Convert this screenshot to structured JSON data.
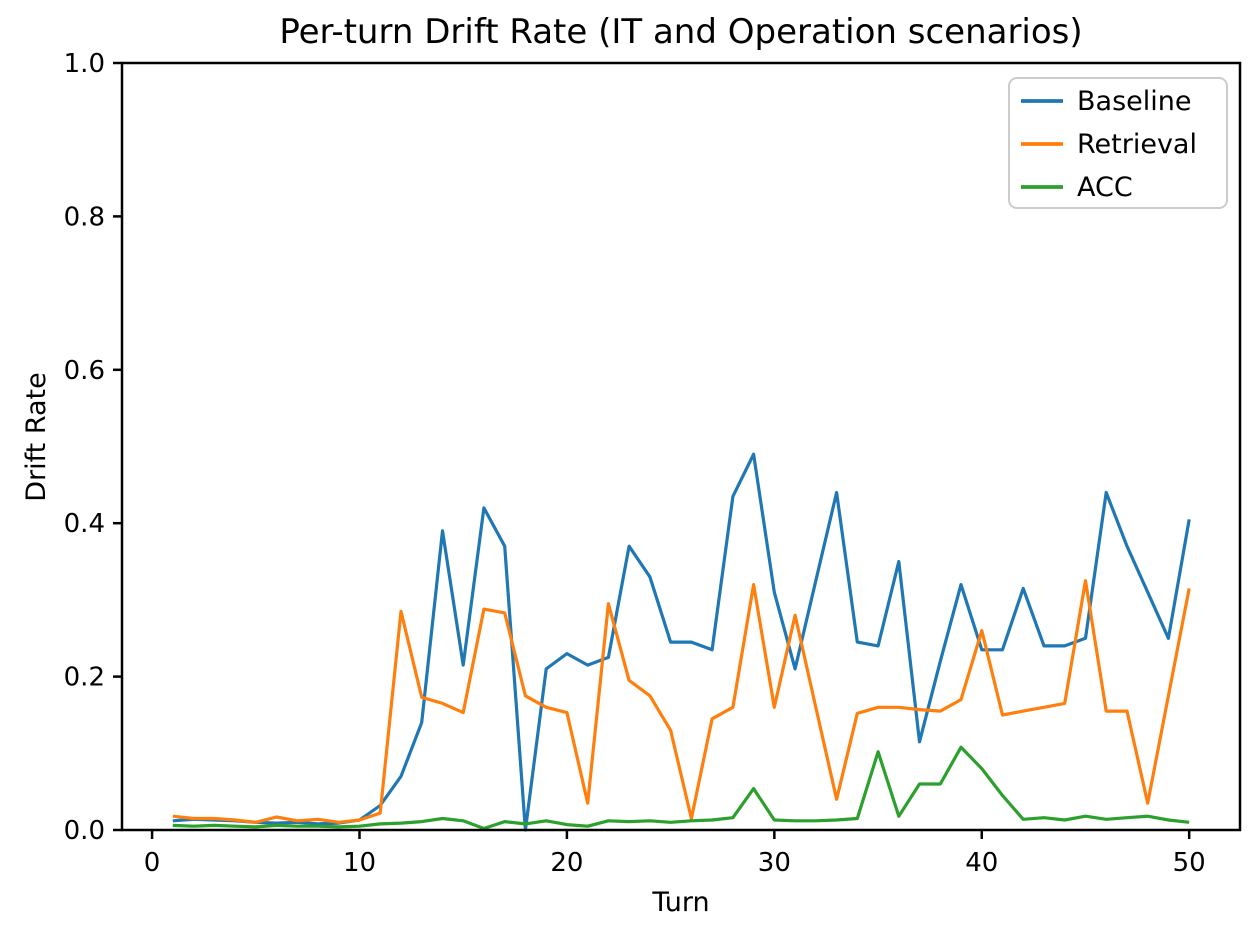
{
  "chart_data": {
    "type": "line",
    "title": "Per-turn Drift Rate (IT and Operation scenarios)",
    "xlabel": "Turn",
    "ylabel": "Drift Rate",
    "xlim": [
      -1.45,
      52.45
    ],
    "ylim": [
      0.0,
      1.0
    ],
    "x_ticks": [
      0,
      10,
      20,
      30,
      40,
      50
    ],
    "y_ticks": [
      "0.0",
      "0.2",
      "0.4",
      "0.6",
      "0.8",
      "1.0"
    ],
    "grid": false,
    "legend_position": "upper right",
    "x": [
      1,
      2,
      3,
      4,
      5,
      6,
      7,
      8,
      9,
      10,
      11,
      12,
      13,
      14,
      15,
      16,
      17,
      18,
      19,
      20,
      21,
      22,
      23,
      24,
      25,
      26,
      27,
      28,
      29,
      30,
      31,
      32,
      33,
      34,
      35,
      36,
      37,
      38,
      39,
      40,
      41,
      42,
      43,
      44,
      45,
      46,
      47,
      48,
      49,
      50
    ],
    "series": [
      {
        "name": "Baseline",
        "color": "#1f77b4",
        "values": [
          0.012,
          0.014,
          0.013,
          0.012,
          0.01,
          0.009,
          0.01,
          0.008,
          0.009,
          0.013,
          0.032,
          0.07,
          0.14,
          0.39,
          0.215,
          0.42,
          0.37,
          0.0,
          0.21,
          0.23,
          0.215,
          0.225,
          0.37,
          0.33,
          0.245,
          0.245,
          0.235,
          0.435,
          0.49,
          0.31,
          0.21,
          0.325,
          0.44,
          0.245,
          0.24,
          0.35,
          0.115,
          0.22,
          0.32,
          0.235,
          0.235,
          0.315,
          0.24,
          0.24,
          0.25,
          0.44,
          0.37,
          0.31,
          0.25,
          0.405
        ]
      },
      {
        "name": "Retrieval",
        "color": "#ff7f0e",
        "values": [
          0.018,
          0.015,
          0.015,
          0.013,
          0.01,
          0.017,
          0.012,
          0.014,
          0.01,
          0.013,
          0.022,
          0.285,
          0.173,
          0.165,
          0.153,
          0.288,
          0.283,
          0.175,
          0.16,
          0.153,
          0.035,
          0.295,
          0.195,
          0.175,
          0.13,
          0.015,
          0.145,
          0.16,
          0.32,
          0.16,
          0.28,
          0.16,
          0.04,
          0.152,
          0.16,
          0.16,
          0.157,
          0.155,
          0.17,
          0.26,
          0.15,
          0.155,
          0.16,
          0.165,
          0.325,
          0.155,
          0.155,
          0.035,
          0.175,
          0.315
        ]
      },
      {
        "name": "ACC",
        "color": "#2ca02c",
        "values": [
          0.006,
          0.005,
          0.006,
          0.005,
          0.004,
          0.006,
          0.005,
          0.005,
          0.004,
          0.005,
          0.008,
          0.009,
          0.011,
          0.015,
          0.012,
          0.002,
          0.011,
          0.008,
          0.012,
          0.007,
          0.005,
          0.012,
          0.011,
          0.012,
          0.01,
          0.012,
          0.013,
          0.016,
          0.054,
          0.013,
          0.012,
          0.012,
          0.013,
          0.015,
          0.102,
          0.018,
          0.06,
          0.06,
          0.108,
          0.08,
          0.045,
          0.014,
          0.016,
          0.013,
          0.018,
          0.014,
          0.016,
          0.018,
          0.013,
          0.01
        ]
      }
    ]
  },
  "style": {
    "axis_color": "#000000",
    "legend_border_color": "#cccccc",
    "background": "#ffffff"
  }
}
